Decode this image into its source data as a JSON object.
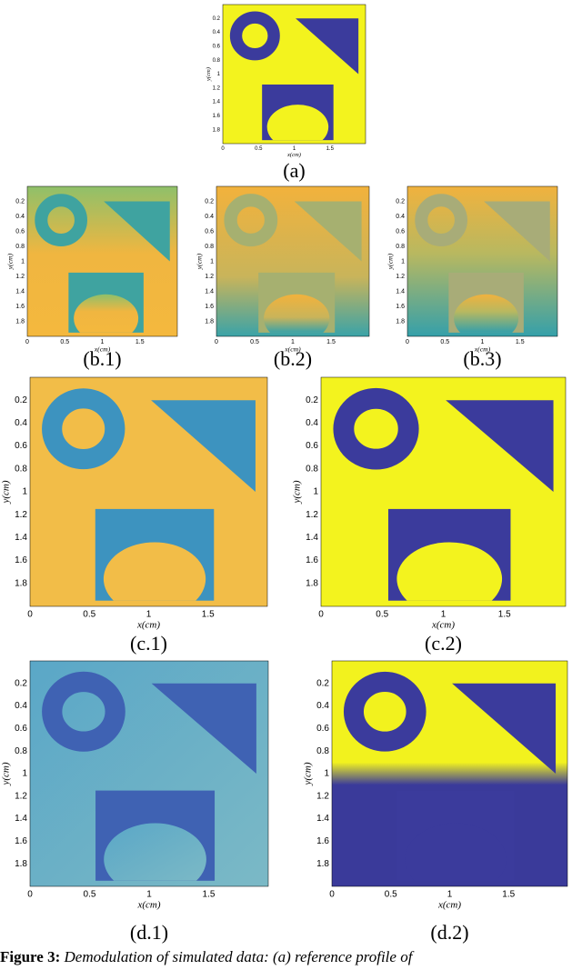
{
  "axes": {
    "xticks": [
      "0",
      "0.5",
      "1",
      "1.5"
    ],
    "yticks": [
      "0.2",
      "0.4",
      "0.6",
      "0.8",
      "1",
      "1.2",
      "1.4",
      "1.6",
      "1.8"
    ],
    "xlabel": "x(cm)",
    "ylabel": "y(cm)"
  },
  "panels": [
    {
      "label": "(a)"
    },
    {
      "label": "(b.1)"
    },
    {
      "label": "(b.2)"
    },
    {
      "label": "(b.3)"
    },
    {
      "label": "(c.1)"
    },
    {
      "label": "(c.2)"
    },
    {
      "label": "(d.1)"
    },
    {
      "label": "(d.2)"
    }
  ],
  "caption": {
    "label": "Figure 3:",
    "text": "Demodulation of simulated data: (a) reference profile of"
  }
}
